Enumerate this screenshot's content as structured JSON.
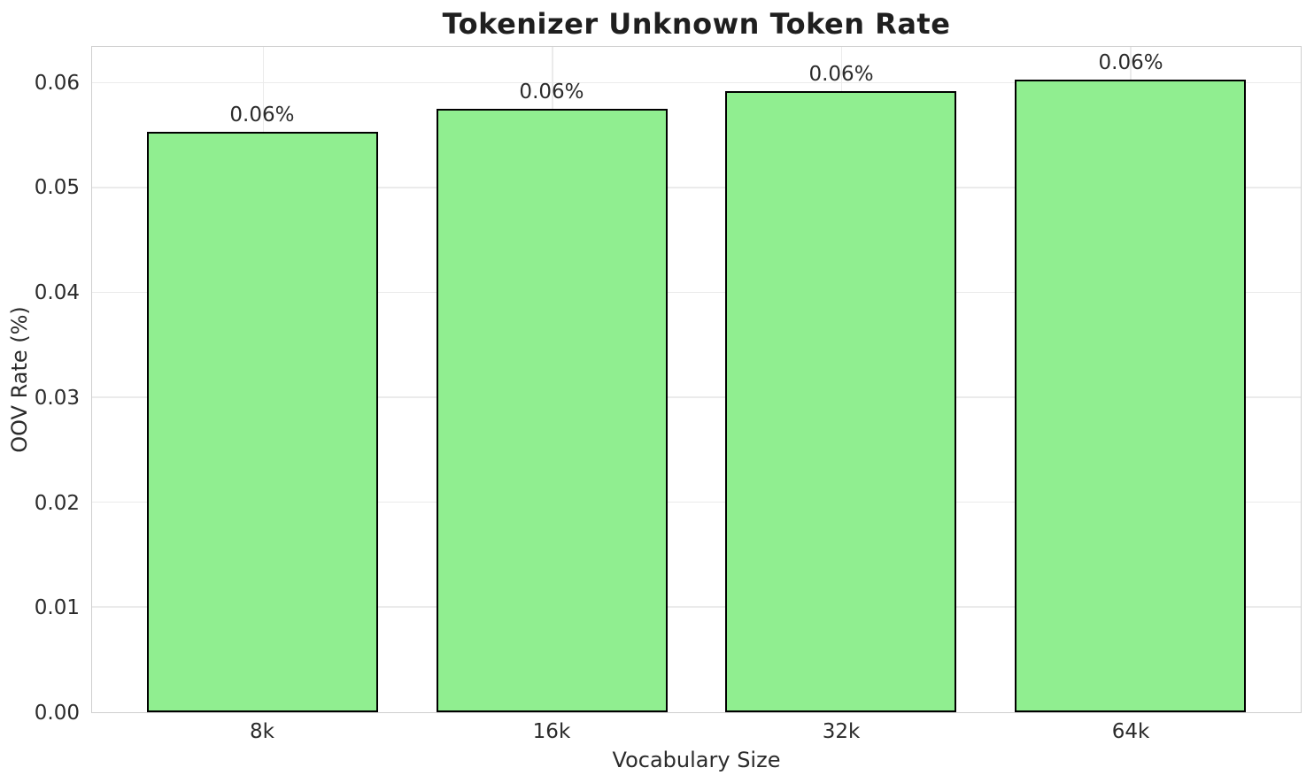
{
  "chart_data": {
    "type": "bar",
    "title": "Tokenizer Unknown Token Rate",
    "xlabel": "Vocabulary Size",
    "ylabel": "OOV Rate (%)",
    "categories": [
      "8k",
      "16k",
      "32k",
      "64k"
    ],
    "values": [
      0.0554,
      0.0576,
      0.0593,
      0.0604
    ],
    "bar_labels": [
      "0.06%",
      "0.06%",
      "0.06%",
      "0.06%"
    ],
    "ytick_labels": [
      "0.00",
      "0.01",
      "0.02",
      "0.03",
      "0.04",
      "0.05",
      "0.06"
    ],
    "ytick_values": [
      0.0,
      0.01,
      0.02,
      0.03,
      0.04,
      0.05,
      0.06
    ],
    "ylim": [
      0,
      0.0635
    ],
    "bar_width_ratio": 0.8,
    "x_edge_margin": 0.59,
    "grid": "both",
    "legend_position": "none",
    "colors": {
      "bar_fill": "#90EE90",
      "bar_edge": "#000000",
      "grid": "#ebebeb",
      "spine": "#cfcfcf",
      "text": "#2b2b2b",
      "title_text": "#1f1f1f",
      "background": "#ffffff"
    }
  }
}
